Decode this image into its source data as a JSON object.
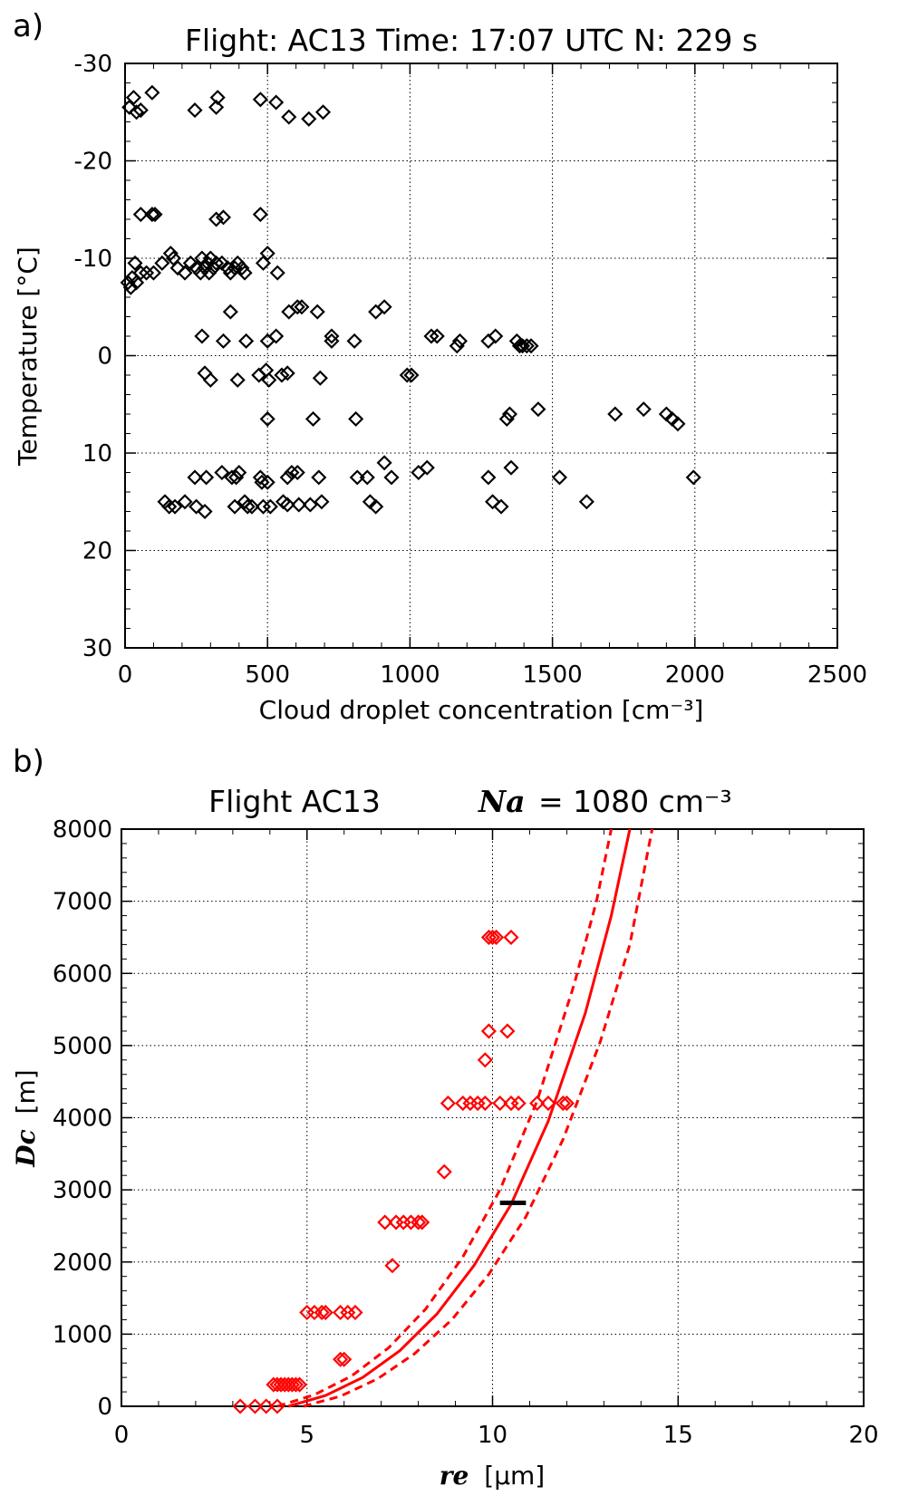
{
  "panel_a_label": "a)",
  "panel_b_label": "b)",
  "colors": {
    "black": "#000000",
    "red": "#ff0000"
  },
  "chart_data": [
    {
      "type": "scatter",
      "title": "Flight: AC13   Time: 17:07 UTC   N: 229 s",
      "xlabel": "Cloud droplet concentration [cm⁻³]",
      "ylabel": "Temperature [°C]",
      "xlim": [
        0,
        2500
      ],
      "ylim": [
        30,
        -30
      ],
      "x_ticks": [
        "0",
        "500",
        "1000",
        "1500",
        "2000",
        "2500"
      ],
      "y_ticks": [
        "-30",
        "-20",
        "-10",
        "0",
        "10",
        "20",
        "30"
      ],
      "grid": true,
      "marker": "diamond",
      "color": "#000000",
      "points": [
        [
          15,
          -25.5
        ],
        [
          30,
          -26.5
        ],
        [
          40,
          -25
        ],
        [
          55,
          -25.2
        ],
        [
          95,
          -27
        ],
        [
          245,
          -25.2
        ],
        [
          320,
          -25.5
        ],
        [
          325,
          -26.5
        ],
        [
          475,
          -26.3
        ],
        [
          530,
          -26
        ],
        [
          575,
          -24.5
        ],
        [
          645,
          -24.3
        ],
        [
          695,
          -25
        ],
        [
          55,
          -14.5
        ],
        [
          95,
          -14.5
        ],
        [
          105,
          -14.5
        ],
        [
          320,
          -14
        ],
        [
          345,
          -14.2
        ],
        [
          475,
          -14.5
        ],
        [
          10,
          -7.5
        ],
        [
          20,
          -7
        ],
        [
          25,
          -8
        ],
        [
          35,
          -9.5
        ],
        [
          40,
          -7.5
        ],
        [
          55,
          -8.5
        ],
        [
          75,
          -8.5
        ],
        [
          100,
          -8.5
        ],
        [
          130,
          -9.5
        ],
        [
          160,
          -10.5
        ],
        [
          170,
          -10
        ],
        [
          185,
          -9
        ],
        [
          210,
          -8.5
        ],
        [
          230,
          -9.5
        ],
        [
          250,
          -9
        ],
        [
          265,
          -8.5
        ],
        [
          270,
          -10
        ],
        [
          280,
          -9
        ],
        [
          290,
          -9.5
        ],
        [
          295,
          -8.5
        ],
        [
          300,
          -10
        ],
        [
          310,
          -9
        ],
        [
          320,
          -9.5
        ],
        [
          340,
          -9.5
        ],
        [
          360,
          -9
        ],
        [
          370,
          -8.5
        ],
        [
          385,
          -9
        ],
        [
          395,
          -9.5
        ],
        [
          410,
          -9
        ],
        [
          420,
          -8.5
        ],
        [
          485,
          -9.5
        ],
        [
          500,
          -10.5
        ],
        [
          535,
          -8.5
        ],
        [
          370,
          -4.5
        ],
        [
          575,
          -4.5
        ],
        [
          605,
          -5
        ],
        [
          620,
          -5
        ],
        [
          675,
          -4.5
        ],
        [
          880,
          -4.5
        ],
        [
          910,
          -5
        ],
        [
          270,
          -2
        ],
        [
          345,
          -1.5
        ],
        [
          425,
          -1.5
        ],
        [
          500,
          -1.5
        ],
        [
          530,
          -2
        ],
        [
          725,
          -1.5
        ],
        [
          725,
          -2
        ],
        [
          805,
          -1.5
        ],
        [
          1075,
          -2
        ],
        [
          1095,
          -2
        ],
        [
          1175,
          -1.5
        ],
        [
          1165,
          -1
        ],
        [
          1275,
          -1.5
        ],
        [
          1300,
          -2
        ],
        [
          1375,
          -1.5
        ],
        [
          1385,
          -1
        ],
        [
          1395,
          -1
        ],
        [
          1410,
          -1
        ],
        [
          1425,
          -1
        ],
        [
          280,
          1.8
        ],
        [
          300,
          2.5
        ],
        [
          395,
          2.5
        ],
        [
          470,
          2
        ],
        [
          495,
          1.5
        ],
        [
          505,
          2.5
        ],
        [
          550,
          2
        ],
        [
          570,
          1.8
        ],
        [
          685,
          2.3
        ],
        [
          990,
          2
        ],
        [
          1005,
          2
        ],
        [
          500,
          6.5
        ],
        [
          660,
          6.5
        ],
        [
          810,
          6.5
        ],
        [
          1340,
          6.5
        ],
        [
          1350,
          6
        ],
        [
          1450,
          5.5
        ],
        [
          1720,
          6
        ],
        [
          1820,
          5.5
        ],
        [
          1900,
          6
        ],
        [
          1920,
          6.5
        ],
        [
          1940,
          7
        ],
        [
          245,
          12.5
        ],
        [
          285,
          12.5
        ],
        [
          340,
          12
        ],
        [
          375,
          12.5
        ],
        [
          390,
          12.5
        ],
        [
          400,
          12
        ],
        [
          475,
          12.5
        ],
        [
          480,
          13
        ],
        [
          500,
          13
        ],
        [
          570,
          12.5
        ],
        [
          585,
          12
        ],
        [
          605,
          12
        ],
        [
          680,
          12.5
        ],
        [
          815,
          12.5
        ],
        [
          850,
          12.5
        ],
        [
          910,
          11
        ],
        [
          935,
          12.5
        ],
        [
          1030,
          12
        ],
        [
          1060,
          11.5
        ],
        [
          1275,
          12.5
        ],
        [
          1355,
          11.5
        ],
        [
          1525,
          12.5
        ],
        [
          1995,
          12.5
        ],
        [
          140,
          15
        ],
        [
          155,
          15.5
        ],
        [
          175,
          15.5
        ],
        [
          210,
          15
        ],
        [
          250,
          15.5
        ],
        [
          280,
          16
        ],
        [
          385,
          15.5
        ],
        [
          420,
          15
        ],
        [
          430,
          15.5
        ],
        [
          445,
          15.5
        ],
        [
          485,
          15.5
        ],
        [
          510,
          15.5
        ],
        [
          555,
          15
        ],
        [
          570,
          15.3
        ],
        [
          610,
          15.3
        ],
        [
          650,
          15.3
        ],
        [
          690,
          15
        ],
        [
          860,
          15
        ],
        [
          880,
          15.5
        ],
        [
          1290,
          15
        ],
        [
          1320,
          15.5
        ],
        [
          1620,
          15
        ]
      ]
    },
    {
      "type": "scatter",
      "title": "Flight AC13",
      "annotation_label": "Na",
      "annotation_value": "= 1080 cm⁻³",
      "xlabel_var": "re",
      "xlabel_unit": "[μm]",
      "ylabel_var": "Dc",
      "ylabel_unit": "[m]",
      "xlim": [
        0,
        20
      ],
      "ylim": [
        0,
        8000
      ],
      "x_ticks": [
        "0",
        "5",
        "10",
        "15",
        "20"
      ],
      "y_ticks": [
        "0",
        "1000",
        "2000",
        "3000",
        "4000",
        "5000",
        "6000",
        "7000",
        "8000"
      ],
      "grid": true,
      "marker": "diamond",
      "color": "#ff0000",
      "points": [
        [
          3.2,
          0
        ],
        [
          3.6,
          0
        ],
        [
          3.9,
          0
        ],
        [
          4.2,
          0
        ],
        [
          4.1,
          300
        ],
        [
          4.2,
          300
        ],
        [
          4.3,
          300
        ],
        [
          4.4,
          300
        ],
        [
          4.5,
          300
        ],
        [
          4.6,
          300
        ],
        [
          4.7,
          300
        ],
        [
          4.8,
          300
        ],
        [
          5.0,
          1300
        ],
        [
          5.2,
          1300
        ],
        [
          5.4,
          1300
        ],
        [
          5.5,
          1300
        ],
        [
          5.9,
          1300
        ],
        [
          6.1,
          1300
        ],
        [
          6.3,
          1300
        ],
        [
          5.9,
          650
        ],
        [
          6.0,
          650
        ],
        [
          7.3,
          1950
        ],
        [
          7.1,
          2550
        ],
        [
          7.4,
          2550
        ],
        [
          7.6,
          2550
        ],
        [
          7.8,
          2550
        ],
        [
          8.0,
          2550
        ],
        [
          8.1,
          2550
        ],
        [
          8.7,
          3250
        ],
        [
          8.8,
          4200
        ],
        [
          9.2,
          4200
        ],
        [
          9.4,
          4200
        ],
        [
          9.6,
          4200
        ],
        [
          9.8,
          4200
        ],
        [
          10.2,
          4200
        ],
        [
          10.5,
          4200
        ],
        [
          10.7,
          4200
        ],
        [
          11.2,
          4200
        ],
        [
          11.5,
          4200
        ],
        [
          11.9,
          4200
        ],
        [
          12.0,
          4200
        ],
        [
          9.8,
          4800
        ],
        [
          9.9,
          5200
        ],
        [
          10.4,
          5200
        ],
        [
          9.9,
          6500
        ],
        [
          10.0,
          6500
        ],
        [
          10.1,
          6500
        ],
        [
          10.5,
          6500
        ]
      ],
      "fit_curve": {
        "x": [
          4.5,
          5.5,
          6.5,
          7.5,
          8.5,
          9.5,
          10.5,
          11.5,
          12.5,
          13.2,
          13.7
        ],
        "y": [
          0,
          150,
          400,
          770,
          1280,
          1950,
          2800,
          3950,
          5450,
          6800,
          8000
        ]
      },
      "fit_lower": {
        "x": [
          4.2,
          5.2,
          6.2,
          7.2,
          8.2,
          9.2,
          10.2,
          11.2,
          12.2,
          12.8,
          13.2
        ],
        "y": [
          0,
          160,
          420,
          810,
          1350,
          2070,
          3000,
          4230,
          5850,
          7000,
          8000
        ]
      },
      "fit_upper": {
        "x": [
          4.9,
          5.9,
          6.9,
          7.9,
          8.9,
          9.9,
          10.9,
          11.9,
          12.9,
          13.7,
          14.3
        ],
        "y": [
          0,
          140,
          380,
          730,
          1200,
          1830,
          2630,
          3700,
          5050,
          6400,
          8000
        ]
      },
      "bar_marker": {
        "x": [
          10.2,
          10.9
        ],
        "y": 2820
      }
    }
  ]
}
